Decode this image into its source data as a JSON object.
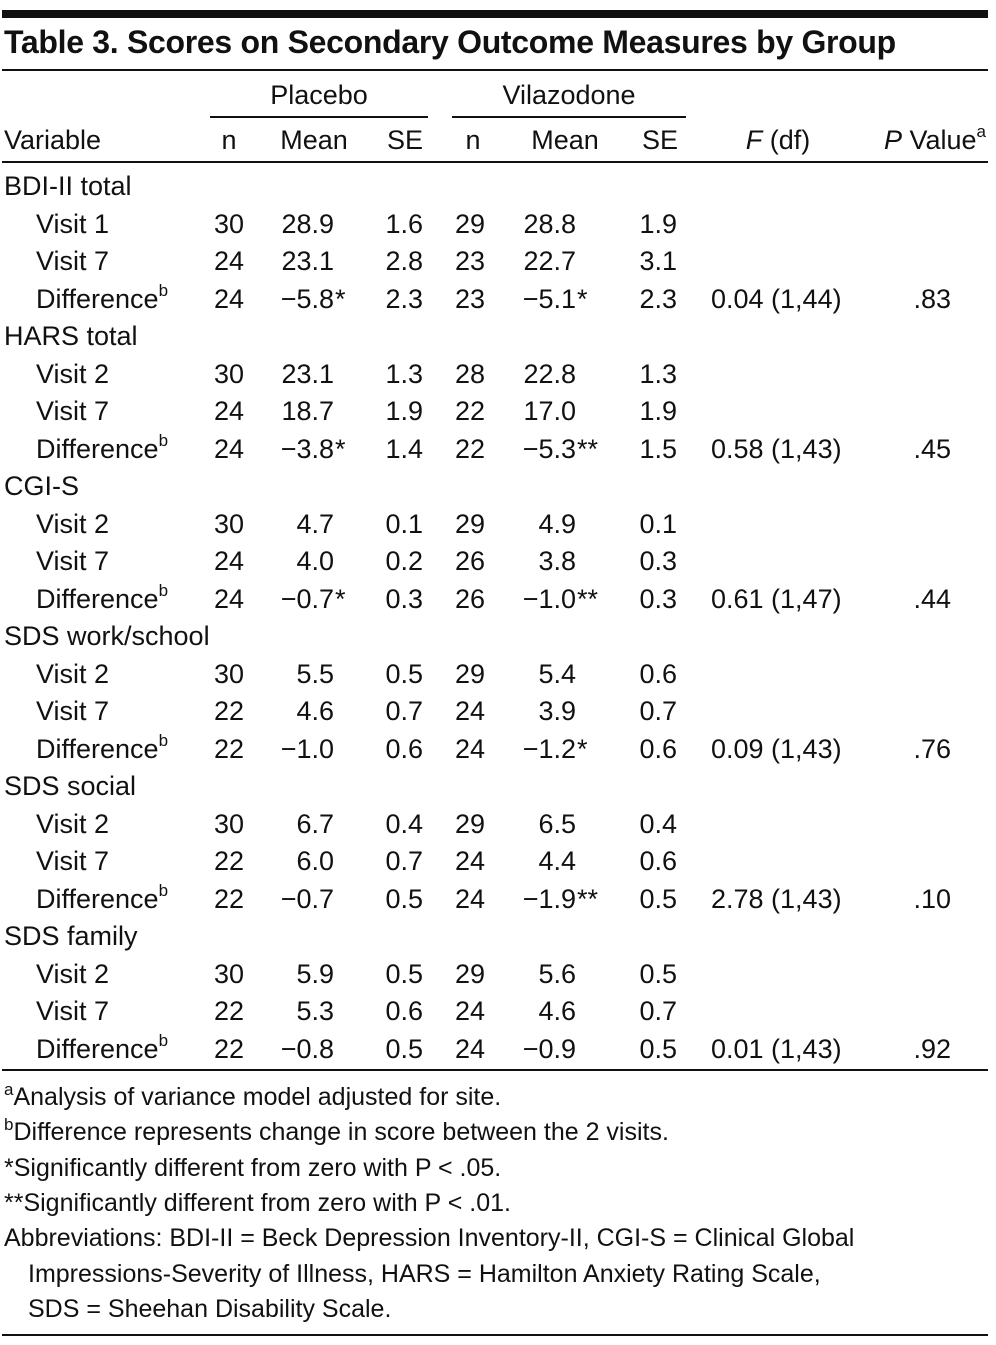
{
  "title": "Table 3. Scores on Secondary Outcome Measures by Group",
  "groups": [
    "Placebo",
    "Vilazodone"
  ],
  "headers": {
    "variable": "Variable",
    "n": "n",
    "mean": "Mean",
    "se": "SE",
    "f": "F",
    "df": "(df)",
    "p": "P Value",
    "p_sup": "a"
  },
  "sections": [
    {
      "name": "BDI-II total",
      "rows": [
        {
          "label": "Visit 1",
          "sup": "",
          "pn": "30",
          "pm": "28.9",
          "ps": "",
          "pse": "1.6",
          "vn": "29",
          "vm": "28.8",
          "vs": "",
          "vse": "1.9",
          "f": "",
          "p": ""
        },
        {
          "label": "Visit 7",
          "sup": "",
          "pn": "24",
          "pm": "23.1",
          "ps": "",
          "pse": "2.8",
          "vn": "23",
          "vm": "22.7",
          "vs": "",
          "vse": "3.1",
          "f": "",
          "p": ""
        },
        {
          "label": "Difference",
          "sup": "b",
          "pn": "24",
          "pm": "−5.8",
          "ps": "*",
          "pse": "2.3",
          "vn": "23",
          "vm": "−5.1",
          "vs": "*",
          "vse": "2.3",
          "f": "0.04 (1,44)",
          "p": ".83"
        }
      ]
    },
    {
      "name": "HARS total",
      "rows": [
        {
          "label": "Visit 2",
          "sup": "",
          "pn": "30",
          "pm": "23.1",
          "ps": "",
          "pse": "1.3",
          "vn": "28",
          "vm": "22.8",
          "vs": "",
          "vse": "1.3",
          "f": "",
          "p": ""
        },
        {
          "label": "Visit 7",
          "sup": "",
          "pn": "24",
          "pm": "18.7",
          "ps": "",
          "pse": "1.9",
          "vn": "22",
          "vm": "17.0",
          "vs": "",
          "vse": "1.9",
          "f": "",
          "p": ""
        },
        {
          "label": "Difference",
          "sup": "b",
          "pn": "24",
          "pm": "−3.8",
          "ps": "*",
          "pse": "1.4",
          "vn": "22",
          "vm": "−5.3",
          "vs": "**",
          "vse": "1.5",
          "f": "0.58 (1,43)",
          "p": ".45"
        }
      ]
    },
    {
      "name": "CGI-S",
      "rows": [
        {
          "label": "Visit 2",
          "sup": "",
          "pn": "30",
          "pm": "4.7",
          "ps": "",
          "pse": "0.1",
          "vn": "29",
          "vm": "4.9",
          "vs": "",
          "vse": "0.1",
          "f": "",
          "p": ""
        },
        {
          "label": "Visit 7",
          "sup": "",
          "pn": "24",
          "pm": "4.0",
          "ps": "",
          "pse": "0.2",
          "vn": "26",
          "vm": "3.8",
          "vs": "",
          "vse": "0.3",
          "f": "",
          "p": ""
        },
        {
          "label": "Difference",
          "sup": "b",
          "pn": "24",
          "pm": "−0.7",
          "ps": "*",
          "pse": "0.3",
          "vn": "26",
          "vm": "−1.0",
          "vs": "**",
          "vse": "0.3",
          "f": "0.61 (1,47)",
          "p": ".44"
        }
      ]
    },
    {
      "name": "SDS work/school",
      "rows": [
        {
          "label": "Visit 2",
          "sup": "",
          "pn": "30",
          "pm": "5.5",
          "ps": "",
          "pse": "0.5",
          "vn": "29",
          "vm": "5.4",
          "vs": "",
          "vse": "0.6",
          "f": "",
          "p": ""
        },
        {
          "label": "Visit 7",
          "sup": "",
          "pn": "22",
          "pm": "4.6",
          "ps": "",
          "pse": "0.7",
          "vn": "24",
          "vm": "3.9",
          "vs": "",
          "vse": "0.7",
          "f": "",
          "p": ""
        },
        {
          "label": "Difference",
          "sup": "b",
          "pn": "22",
          "pm": "−1.0",
          "ps": "",
          "pse": "0.6",
          "vn": "24",
          "vm": "−1.2",
          "vs": "*",
          "vse": "0.6",
          "f": "0.09 (1,43)",
          "p": ".76"
        }
      ]
    },
    {
      "name": "SDS social",
      "rows": [
        {
          "label": "Visit 2",
          "sup": "",
          "pn": "30",
          "pm": "6.7",
          "ps": "",
          "pse": "0.4",
          "vn": "29",
          "vm": "6.5",
          "vs": "",
          "vse": "0.4",
          "f": "",
          "p": ""
        },
        {
          "label": "Visit 7",
          "sup": "",
          "pn": "22",
          "pm": "6.0",
          "ps": "",
          "pse": "0.7",
          "vn": "24",
          "vm": "4.4",
          "vs": "",
          "vse": "0.6",
          "f": "",
          "p": ""
        },
        {
          "label": "Difference",
          "sup": "b",
          "pn": "22",
          "pm": "−0.7",
          "ps": "",
          "pse": "0.5",
          "vn": "24",
          "vm": "−1.9",
          "vs": "**",
          "vse": "0.5",
          "f": "2.78 (1,43)",
          "p": ".10"
        }
      ]
    },
    {
      "name": "SDS family",
      "rows": [
        {
          "label": "Visit 2",
          "sup": "",
          "pn": "30",
          "pm": "5.9",
          "ps": "",
          "pse": "0.5",
          "vn": "29",
          "vm": "5.6",
          "vs": "",
          "vse": "0.5",
          "f": "",
          "p": ""
        },
        {
          "label": "Visit 7",
          "sup": "",
          "pn": "22",
          "pm": "5.3",
          "ps": "",
          "pse": "0.6",
          "vn": "24",
          "vm": "4.6",
          "vs": "",
          "vse": "0.7",
          "f": "",
          "p": ""
        },
        {
          "label": "Difference",
          "sup": "b",
          "pn": "22",
          "pm": "−0.8",
          "ps": "",
          "pse": "0.5",
          "vn": "24",
          "vm": "−0.9",
          "vs": "",
          "vse": "0.5",
          "f": "0.01 (1,43)",
          "p": ".92"
        }
      ]
    }
  ],
  "footnotes": [
    {
      "mark": "a",
      "text": "Analysis of variance model adjusted for site."
    },
    {
      "mark": "b",
      "text": "Difference represents change in score between the 2 visits."
    },
    {
      "mark": "",
      "text": "*Significantly different from zero with P < .05."
    },
    {
      "mark": "",
      "text": "**Significantly different from zero with P < .01."
    }
  ],
  "abbreviations": [
    "Abbreviations: BDI-II = Beck Depression Inventory-II, CGI-S = Clinical Global",
    "Impressions-Severity of Illness, HARS = Hamilton Anxiety Rating Scale,",
    "SDS = Sheehan Disability Scale."
  ]
}
